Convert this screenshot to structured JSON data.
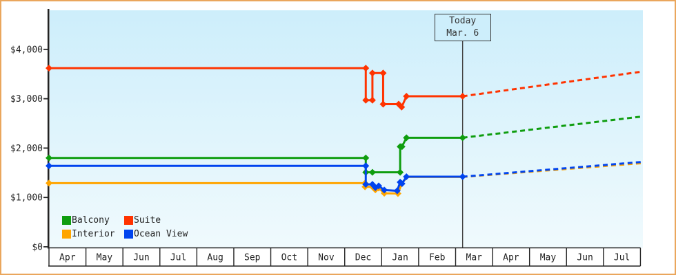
{
  "frame": {
    "border_color": "#eaa65c",
    "background": "#ffffff"
  },
  "chart_data": {
    "type": "line",
    "description": "Cruise cabin price history by category; solid step lines are past prices, dashed lines are predicted prices after today",
    "x_axis": {
      "months": [
        "Apr",
        "May",
        "Jun",
        "Jul",
        "Aug",
        "Sep",
        "Oct",
        "Nov",
        "Dec",
        "Jan",
        "Feb",
        "Mar",
        "Apr",
        "May",
        "Jun",
        "Jul"
      ],
      "unit": "point x = month cell index, 0 = April (year 1) through 16 = end of July (year 2)"
    },
    "y_axis": {
      "unit": "USD",
      "ticks": [
        {
          "label": "$0",
          "value": 0
        },
        {
          "label": "$1,000",
          "value": 1000
        },
        {
          "label": "$2,000",
          "value": 2000
        },
        {
          "label": "$3,000",
          "value": 3000
        },
        {
          "label": "$4,000",
          "value": 4000
        }
      ],
      "range": [
        0,
        4600
      ],
      "grid": "off"
    },
    "plot": {
      "bg_top": "#cdeefb",
      "bg_bottom": "#f0fafd",
      "axis_color": "#222222",
      "today_line_color": "#444444"
    },
    "today": {
      "label_line1": "Today",
      "label_line2": "Mar. 6",
      "month_index": 11.19
    },
    "legend": {
      "position": "bottom-left inside plot",
      "items": [
        {
          "label": "Balcony",
          "color": "#0f9d0f"
        },
        {
          "label": "Suite",
          "color": "#ff3300"
        },
        {
          "label": "Interior",
          "color": "#ffa500"
        },
        {
          "label": "Ocean View",
          "color": "#0044ee"
        }
      ]
    },
    "series": [
      {
        "id": "interior",
        "name": "Interior",
        "color": "#ffa500",
        "points": [
          [
            0,
            1290
          ],
          [
            8.55,
            1290
          ],
          [
            8.55,
            1215
          ],
          [
            8.75,
            1215
          ],
          [
            8.83,
            1155
          ],
          [
            8.92,
            1190
          ],
          [
            9.07,
            1085
          ],
          [
            9.44,
            1080
          ],
          [
            9.55,
            1290
          ],
          [
            9.69,
            1415
          ],
          [
            11.19,
            1415
          ]
        ],
        "marker_count": 8,
        "prediction": [
          [
            11.19,
            1415
          ],
          [
            16.05,
            1695
          ]
        ]
      },
      {
        "id": "suite",
        "name": "Suite",
        "color": "#ff3300",
        "points": [
          [
            0,
            3620
          ],
          [
            8.57,
            3620
          ],
          [
            8.57,
            2970
          ],
          [
            8.75,
            2970
          ],
          [
            8.75,
            3520
          ],
          [
            9.04,
            3520
          ],
          [
            9.04,
            2890
          ],
          [
            9.46,
            2890
          ],
          [
            9.54,
            2830
          ],
          [
            9.67,
            3050
          ],
          [
            11.19,
            3050
          ]
        ],
        "prediction": [
          [
            11.19,
            3050
          ],
          [
            16.05,
            3550
          ]
        ]
      },
      {
        "id": "balcony",
        "name": "Balcony",
        "color": "#0f9d0f",
        "points": [
          [
            0,
            1800
          ],
          [
            8.57,
            1800
          ],
          [
            8.57,
            1510
          ],
          [
            8.75,
            1510
          ],
          [
            9.5,
            1510
          ],
          [
            9.5,
            2030
          ],
          [
            9.55,
            2030
          ],
          [
            9.67,
            2210
          ],
          [
            11.19,
            2210
          ]
        ],
        "prediction": [
          [
            11.19,
            2210
          ],
          [
            16.05,
            2640
          ]
        ]
      },
      {
        "id": "ocean_view",
        "name": "Ocean View",
        "color": "#0044ee",
        "points": [
          [
            0,
            1640
          ],
          [
            8.57,
            1640
          ],
          [
            8.57,
            1265
          ],
          [
            8.75,
            1265
          ],
          [
            8.83,
            1200
          ],
          [
            8.92,
            1235
          ],
          [
            9.07,
            1150
          ],
          [
            9.42,
            1135
          ],
          [
            9.5,
            1310
          ],
          [
            9.55,
            1280
          ],
          [
            9.67,
            1420
          ],
          [
            11.19,
            1420
          ]
        ],
        "prediction": [
          [
            11.19,
            1420
          ],
          [
            16.05,
            1720
          ]
        ]
      }
    ]
  }
}
